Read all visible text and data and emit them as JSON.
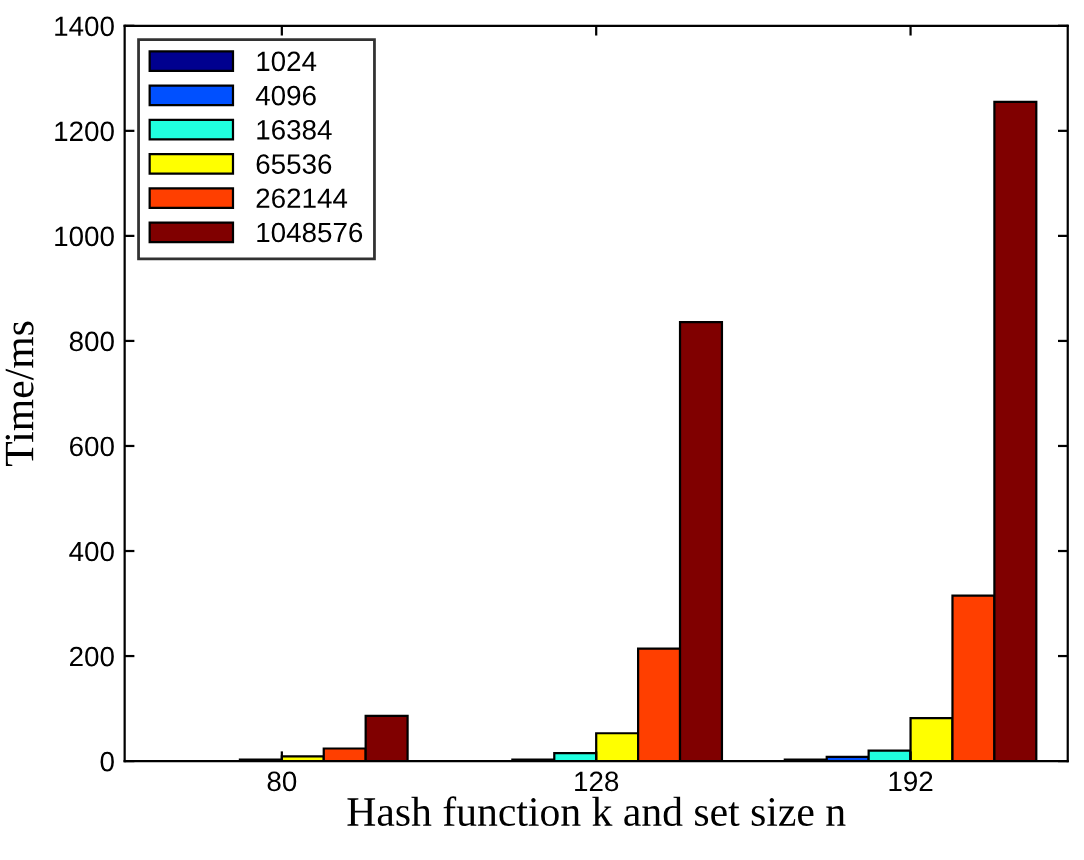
{
  "chart_data": {
    "type": "bar",
    "xlabel": "Hash function k and set size n",
    "ylabel": "Time/ms",
    "categories": [
      "80",
      "128",
      "192"
    ],
    "series": [
      {
        "name": "1024",
        "color": "#00008f",
        "values": [
          null,
          null,
          3
        ]
      },
      {
        "name": "4096",
        "color": "#0050ff",
        "values": [
          null,
          3,
          8
        ]
      },
      {
        "name": "16384",
        "color": "#20ffdf",
        "values": [
          3,
          15,
          20
        ]
      },
      {
        "name": "65536",
        "color": "#ffff00",
        "values": [
          9,
          53,
          82
        ]
      },
      {
        "name": "262144",
        "color": "#ff3f00",
        "values": [
          24,
          214,
          315
        ]
      },
      {
        "name": "1048576",
        "color": "#800000",
        "values": [
          86,
          836,
          1255
        ]
      }
    ],
    "ylim": [
      0,
      1400
    ],
    "yticks": [
      0,
      200,
      400,
      600,
      800,
      1000,
      1200,
      1400
    ],
    "grid": false,
    "legend": "top left"
  }
}
